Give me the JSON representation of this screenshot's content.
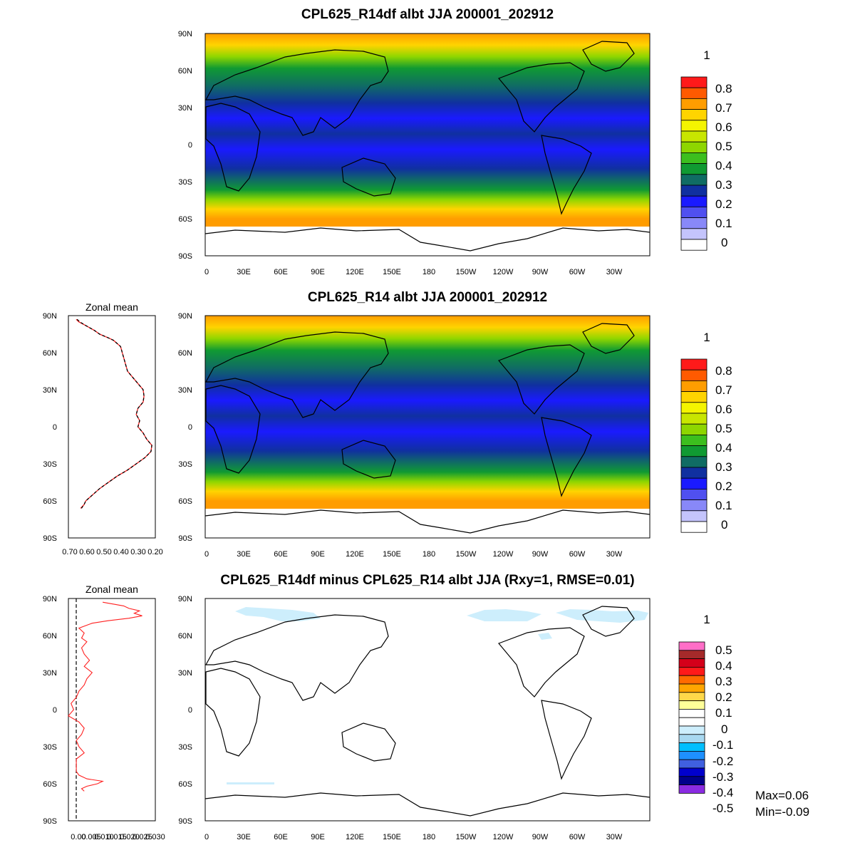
{
  "chart_data": [
    {
      "type": "heatmap",
      "title": "CPL625_R14df albt JJA 200001_202912",
      "colorbar_unit": "1",
      "colorbar_labels": [
        "0.8",
        "0.7",
        "0.6",
        "0.5",
        "0.4",
        "0.3",
        "0.2",
        "0.1",
        "0"
      ],
      "colorbar_colors": [
        "#ff1a1a",
        "#ff5a00",
        "#ff9d00",
        "#ffd400",
        "#f4f400",
        "#c8e600",
        "#8ed600",
        "#3cbf1e",
        "#109a32",
        "#106c64",
        "#1030a0",
        "#1a1aff",
        "#5050f0",
        "#8888f8",
        "#c4c4fc",
        "#ffffff"
      ],
      "xticks": [
        "0",
        "30E",
        "60E",
        "90E",
        "120E",
        "150E",
        "180",
        "150W",
        "120W",
        "90W",
        "60W",
        "30W"
      ],
      "yticks": [
        "90N",
        "60N",
        "30N",
        "0",
        "30S",
        "60S",
        "90S"
      ]
    },
    {
      "type": "heatmap",
      "title": "CPL625_R14 albt JJA 200001_202912",
      "colorbar_unit": "1",
      "colorbar_labels": [
        "0.8",
        "0.7",
        "0.6",
        "0.5",
        "0.4",
        "0.3",
        "0.2",
        "0.1",
        "0"
      ],
      "xticks": [
        "0",
        "30E",
        "60E",
        "90E",
        "120E",
        "150E",
        "180",
        "150W",
        "120W",
        "90W",
        "60W",
        "30W"
      ],
      "yticks": [
        "90N",
        "60N",
        "30N",
        "0",
        "30S",
        "60S",
        "90S"
      ]
    },
    {
      "type": "heatmap",
      "title": "CPL625_R14df minus CPL625_R14 albt JJA (Rxy=1, RMSE=0.01)",
      "colorbar_unit": "1",
      "colorbar_labels": [
        "0.5",
        "0.4",
        "0.3",
        "0.2",
        "0.1",
        "0",
        "-0.1",
        "-0.2",
        "-0.3",
        "-0.4",
        "-0.5"
      ],
      "colorbar_colors": [
        "#ff6ec7",
        "#a52a2a",
        "#d4001a",
        "#ff1a1a",
        "#ff6a00",
        "#ffa500",
        "#ffd84a",
        "#ffff99",
        "#ffffff",
        "#ffffff",
        "#cdeefc",
        "#a8d8f0",
        "#00bfff",
        "#1e90ff",
        "#4060e0",
        "#0000cd",
        "#00008b",
        "#8a2be2"
      ],
      "max_label": "Max=0.06",
      "min_label": "Min=-0.09",
      "xticks": [
        "0",
        "30E",
        "60E",
        "90E",
        "120E",
        "150E",
        "180",
        "150W",
        "120W",
        "90W",
        "60W",
        "30W"
      ],
      "yticks": [
        "90N",
        "60N",
        "30N",
        "0",
        "30S",
        "60S",
        "90S"
      ]
    },
    {
      "type": "line",
      "title": "Zonal mean",
      "xticks": [
        "0.70",
        "0.60",
        "0.50",
        "0.40",
        "0.30",
        "0.20"
      ],
      "xlim": [
        0.7,
        0.2
      ],
      "ylim": [
        -90,
        90
      ],
      "yticks": [
        "90N",
        "60N",
        "30N",
        "0",
        "30S",
        "60S",
        "90S"
      ],
      "lat": [
        87,
        85,
        82,
        78,
        75,
        72,
        70,
        65,
        60,
        55,
        50,
        45,
        40,
        35,
        30,
        25,
        20,
        15,
        10,
        5,
        0,
        -5,
        -10,
        -15,
        -20,
        -25,
        -30,
        -35,
        -40,
        -45,
        -50,
        -55,
        -60,
        -63,
        -66
      ],
      "series": [
        {
          "values": [
            0.655,
            0.64,
            0.6,
            0.55,
            0.52,
            0.47,
            0.44,
            0.4,
            0.39,
            0.38,
            0.37,
            0.36,
            0.33,
            0.3,
            0.27,
            0.265,
            0.27,
            0.3,
            0.31,
            0.29,
            0.3,
            0.27,
            0.25,
            0.22,
            0.225,
            0.26,
            0.31,
            0.36,
            0.42,
            0.47,
            0.52,
            0.56,
            0.6,
            0.61,
            0.63
          ]
        },
        {
          "values": [
            0.65,
            0.635,
            0.6,
            0.55,
            0.52,
            0.47,
            0.44,
            0.4,
            0.39,
            0.38,
            0.37,
            0.36,
            0.33,
            0.3,
            0.27,
            0.265,
            0.27,
            0.3,
            0.31,
            0.29,
            0.3,
            0.27,
            0.25,
            0.22,
            0.225,
            0.26,
            0.31,
            0.36,
            0.42,
            0.47,
            0.52,
            0.56,
            0.6,
            0.61,
            0.625
          ]
        }
      ]
    },
    {
      "type": "line",
      "title": "Zonal mean",
      "xticks": [
        "0.00",
        "0.005",
        "0.010",
        "0.015",
        "0.020",
        "0.025",
        "0.030"
      ],
      "xlim": [
        -0.003,
        0.03
      ],
      "ylim": [
        -90,
        90
      ],
      "yticks": [
        "90N",
        "60N",
        "30N",
        "0",
        "30S",
        "60S",
        "90S"
      ],
      "lat": [
        87,
        84,
        82,
        80,
        78,
        76,
        74,
        72,
        70,
        66,
        62,
        58,
        55,
        50,
        45,
        40,
        35,
        30,
        25,
        20,
        15,
        10,
        5,
        0,
        -5,
        -10,
        -15,
        -20,
        -25,
        -30,
        -35,
        -40,
        -45,
        -50,
        -53,
        -56,
        -58,
        -60,
        -62,
        -64,
        -66
      ],
      "series": [
        {
          "values": [
            0.01,
            0.018,
            0.02,
            0.024,
            0.022,
            0.025,
            0.02,
            0.012,
            0.006,
            0.001,
            0.003,
            0.002,
            0.004,
            0.002,
            0.003,
            0.005,
            0.003,
            0.006,
            0.004,
            0.003,
            0.001,
            0.0,
            -0.002,
            -0.001,
            -0.003,
            0.001,
            0.003,
            0.002,
            0.0,
            0.001,
            0.003,
            0.0,
            0.0,
            0.0,
            0.001,
            0.004,
            0.01,
            0.008,
            0.004,
            0.002,
            0.003
          ]
        }
      ]
    }
  ]
}
